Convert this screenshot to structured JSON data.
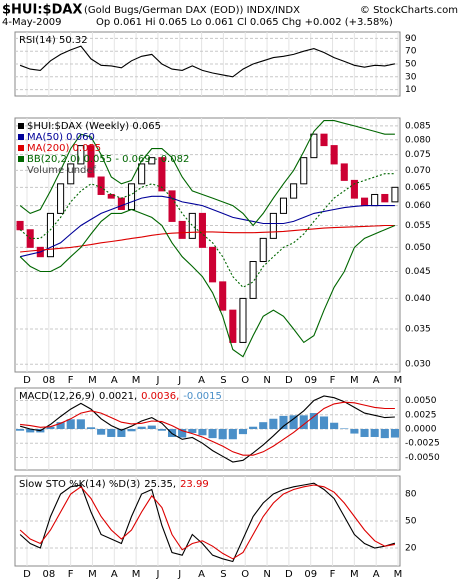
{
  "header": {
    "symbol": "$HUI:$DAX",
    "description": "(Gold Bugs/German DAX (EOD))  INDX/INDX",
    "credit": "© StockCharts.com",
    "date": "4-May-2009",
    "quote": "Op 0.061  Hi 0.065  Lo 0.061  Cl 0.065  Chg +0.002 (+3.58%)"
  },
  "x_labels": [
    "D",
    "08",
    "F",
    "M",
    "A",
    "M",
    "J",
    "J",
    "A",
    "S",
    "O",
    "N",
    "D",
    "09",
    "F",
    "M",
    "A",
    "M"
  ],
  "chart_data": [
    {
      "type": "line",
      "label": "RSI(14) 50.32",
      "legend_layout": "inline",
      "ylim": [
        0,
        100
      ],
      "yticks": [
        90,
        70,
        50,
        30,
        10
      ],
      "grid": true,
      "series": [
        {
          "color": "#000000",
          "values": [
            48,
            42,
            40,
            55,
            65,
            72,
            78,
            58,
            48,
            47,
            44,
            55,
            62,
            65,
            50,
            42,
            40,
            47,
            40,
            36,
            33,
            30,
            42,
            50,
            55,
            60,
            62,
            65,
            70,
            74,
            68,
            60,
            54,
            48,
            45,
            48,
            47,
            50.32
          ]
        }
      ]
    },
    {
      "type": "candlestick",
      "log_scale": true,
      "legend_layout": "rows",
      "legend": "top-left",
      "grid": true,
      "ylim": [
        0.029,
        0.088
      ],
      "yticks": [
        {
          "value": 0.03,
          "label": "0.030"
        },
        0.035,
        {
          "value": 0.04,
          "label": "0.040"
        },
        0.045,
        {
          "value": 0.05,
          "label": "0.050"
        },
        0.055,
        {
          "value": 0.06,
          "label": "0.060"
        },
        0.065,
        {
          "value": 0.07,
          "label": "0.070"
        },
        0.075,
        {
          "value": 0.08,
          "label": "0.080"
        },
        0.085
      ],
      "series": [
        {
          "name": "$HUI:$DAX (Weekly) 0.065",
          "color": "#000000",
          "down_color": "#cc0033",
          "open": [
            0.056,
            0.054,
            0.05,
            0.048,
            0.058,
            0.066,
            0.072,
            0.078,
            0.068,
            0.063,
            0.062,
            0.059,
            0.066,
            0.072,
            0.074,
            0.064,
            0.056,
            0.052,
            0.058,
            0.05,
            0.043,
            0.038,
            0.033,
            0.04,
            0.047,
            0.052,
            0.058,
            0.062,
            0.066,
            0.074,
            0.082,
            0.078,
            0.072,
            0.067,
            0.062,
            0.06,
            0.063,
            0.061
          ],
          "close": [
            0.054,
            0.05,
            0.048,
            0.058,
            0.066,
            0.072,
            0.078,
            0.068,
            0.063,
            0.062,
            0.059,
            0.066,
            0.072,
            0.074,
            0.064,
            0.056,
            0.052,
            0.058,
            0.05,
            0.043,
            0.038,
            0.033,
            0.04,
            0.047,
            0.052,
            0.058,
            0.062,
            0.066,
            0.074,
            0.082,
            0.078,
            0.072,
            0.067,
            0.062,
            0.06,
            0.063,
            0.061,
            0.065
          ]
        },
        {
          "name": "MA(50) 0.060",
          "color": "#000099",
          "values": [
            0.048,
            0.0485,
            0.049,
            0.05,
            0.051,
            0.053,
            0.055,
            0.0565,
            0.058,
            0.059,
            0.06,
            0.061,
            0.062,
            0.0625,
            0.0625,
            0.062,
            0.061,
            0.0605,
            0.06,
            0.059,
            0.058,
            0.057,
            0.0565,
            0.056,
            0.0555,
            0.0555,
            0.0555,
            0.056,
            0.057,
            0.058,
            0.0585,
            0.059,
            0.0595,
            0.0598,
            0.06,
            0.06,
            0.06,
            0.06
          ]
        },
        {
          "name": "MA(200) 0.055",
          "color": "#dd0000",
          "values": [
            0.049,
            0.0492,
            0.0494,
            0.0496,
            0.0498,
            0.05,
            0.0503,
            0.0506,
            0.051,
            0.0513,
            0.0516,
            0.052,
            0.0523,
            0.0527,
            0.053,
            0.0532,
            0.0533,
            0.0534,
            0.0535,
            0.0535,
            0.0534,
            0.0533,
            0.0533,
            0.0533,
            0.0534,
            0.0535,
            0.0536,
            0.0538,
            0.054,
            0.0542,
            0.0544,
            0.0545,
            0.0546,
            0.0547,
            0.0548,
            0.0549,
            0.055,
            0.055
          ]
        },
        {
          "name": "BB(20,2.0) 0.055 - 0.069 - 0.082",
          "color": "#006600",
          "values": [
            0.06,
            0.058,
            0.059,
            0.064,
            0.07,
            0.077,
            0.082,
            0.081,
            0.075,
            0.068,
            0.066,
            0.067,
            0.073,
            0.077,
            0.077,
            0.074,
            0.068,
            0.064,
            0.063,
            0.062,
            0.061,
            0.06,
            0.058,
            0.055,
            0.058,
            0.062,
            0.066,
            0.07,
            0.076,
            0.083,
            0.087,
            0.087,
            0.086,
            0.085,
            0.084,
            0.083,
            0.082,
            0.082
          ]
        },
        {
          "color": "#006600",
          "style": "dashed",
          "values": [
            0.054,
            0.052,
            0.052,
            0.054,
            0.057,
            0.061,
            0.064,
            0.066,
            0.065,
            0.063,
            0.062,
            0.063,
            0.065,
            0.066,
            0.065,
            0.062,
            0.058,
            0.055,
            0.053,
            0.051,
            0.048,
            0.044,
            0.042,
            0.043,
            0.046,
            0.048,
            0.05,
            0.051,
            0.053,
            0.056,
            0.059,
            0.062,
            0.064,
            0.066,
            0.067,
            0.068,
            0.069,
            0.069
          ]
        },
        {
          "color": "#006600",
          "values": [
            0.048,
            0.046,
            0.045,
            0.045,
            0.046,
            0.048,
            0.05,
            0.053,
            0.056,
            0.058,
            0.058,
            0.059,
            0.058,
            0.057,
            0.055,
            0.051,
            0.048,
            0.046,
            0.044,
            0.041,
            0.037,
            0.032,
            0.031,
            0.034,
            0.037,
            0.038,
            0.037,
            0.035,
            0.033,
            0.034,
            0.038,
            0.042,
            0.045,
            0.05,
            0.052,
            0.053,
            0.054,
            0.055
          ]
        }
      ],
      "legend_extra": [
        "Volume undef"
      ]
    },
    {
      "type": "line",
      "label": "MACD(12,26,9)",
      "legend_layout": "inline",
      "grid": true,
      "ylim": [
        -0.0072,
        0.0072
      ],
      "yticks": [
        {
          "value": 0.005,
          "label": "0.0050"
        },
        {
          "value": 0.0025,
          "label": "0.0025"
        },
        {
          "value": 0,
          "label": "0.0000"
        },
        {
          "value": -0.0025,
          "label": "-0.0025"
        },
        {
          "value": -0.005,
          "label": "-0.0050"
        }
      ],
      "series": [
        {
          "name": "0.0021,",
          "color": "#000000",
          "values": [
            0.0005,
            0.0,
            -0.0003,
            0.0008,
            0.0022,
            0.0035,
            0.0045,
            0.0035,
            0.0018,
            0.0006,
            -0.0002,
            0.0005,
            0.0014,
            0.002,
            0.001,
            -0.0008,
            -0.0018,
            -0.0015,
            -0.0025,
            -0.0038,
            -0.0048,
            -0.0058,
            -0.0055,
            -0.0042,
            -0.0028,
            -0.0012,
            0.0005,
            0.0018,
            0.0032,
            0.005,
            0.0058,
            0.0055,
            0.0048,
            0.0038,
            0.0028,
            0.0024,
            0.002,
            0.0021
          ]
        },
        {
          "name": "0.0036,",
          "color": "#dd0000",
          "values": [
            0.0008,
            0.0006,
            0.0003,
            0.0004,
            0.001,
            0.0018,
            0.0028,
            0.0032,
            0.0028,
            0.002,
            0.0012,
            0.0009,
            0.001,
            0.0014,
            0.0013,
            0.0006,
            -0.0003,
            -0.0008,
            -0.0014,
            -0.0022,
            -0.003,
            -0.004,
            -0.0046,
            -0.0046,
            -0.004,
            -0.003,
            -0.0018,
            -0.0006,
            0.0008,
            0.0022,
            0.0036,
            0.0044,
            0.0047,
            0.0046,
            0.0042,
            0.0038,
            0.0036,
            0.0036
          ]
        },
        {
          "name": "-0.0015",
          "color": "#4a8fc8",
          "style": "bar",
          "values": [
            -0.0003,
            -0.0006,
            -0.0006,
            0.0004,
            0.0012,
            0.0017,
            0.0017,
            0.0003,
            -0.001,
            -0.0014,
            -0.0014,
            -0.0004,
            0.0004,
            0.0006,
            -0.0003,
            -0.0014,
            -0.0015,
            -0.0007,
            -0.0011,
            -0.0016,
            -0.0018,
            -0.0018,
            -0.0009,
            0.0004,
            0.0012,
            0.0018,
            0.0023,
            0.0024,
            0.0024,
            0.0028,
            0.0022,
            0.0011,
            0.0001,
            -0.0008,
            -0.0014,
            -0.0014,
            -0.0016,
            -0.0015
          ]
        }
      ]
    },
    {
      "type": "line",
      "label": "Slow STO %K(14) %D(3)",
      "legend_layout": "inline",
      "grid": true,
      "ylim": [
        0,
        100
      ],
      "yticks": [
        80,
        50,
        20
      ],
      "series": [
        {
          "name": "25.35,",
          "color": "#000000",
          "values": [
            35,
            25,
            20,
            55,
            80,
            88,
            90,
            60,
            35,
            30,
            25,
            55,
            80,
            85,
            45,
            15,
            12,
            35,
            25,
            12,
            8,
            5,
            30,
            55,
            70,
            80,
            85,
            88,
            90,
            92,
            85,
            75,
            55,
            35,
            25,
            20,
            22,
            25.35
          ]
        },
        {
          "name": "23.99",
          "color": "#dd0000",
          "values": [
            40,
            30,
            25,
            40,
            60,
            80,
            88,
            75,
            55,
            40,
            30,
            40,
            60,
            78,
            65,
            35,
            18,
            25,
            28,
            22,
            14,
            8,
            15,
            35,
            55,
            70,
            80,
            85,
            88,
            90,
            88,
            82,
            70,
            55,
            40,
            28,
            22,
            23.99
          ]
        }
      ]
    }
  ]
}
